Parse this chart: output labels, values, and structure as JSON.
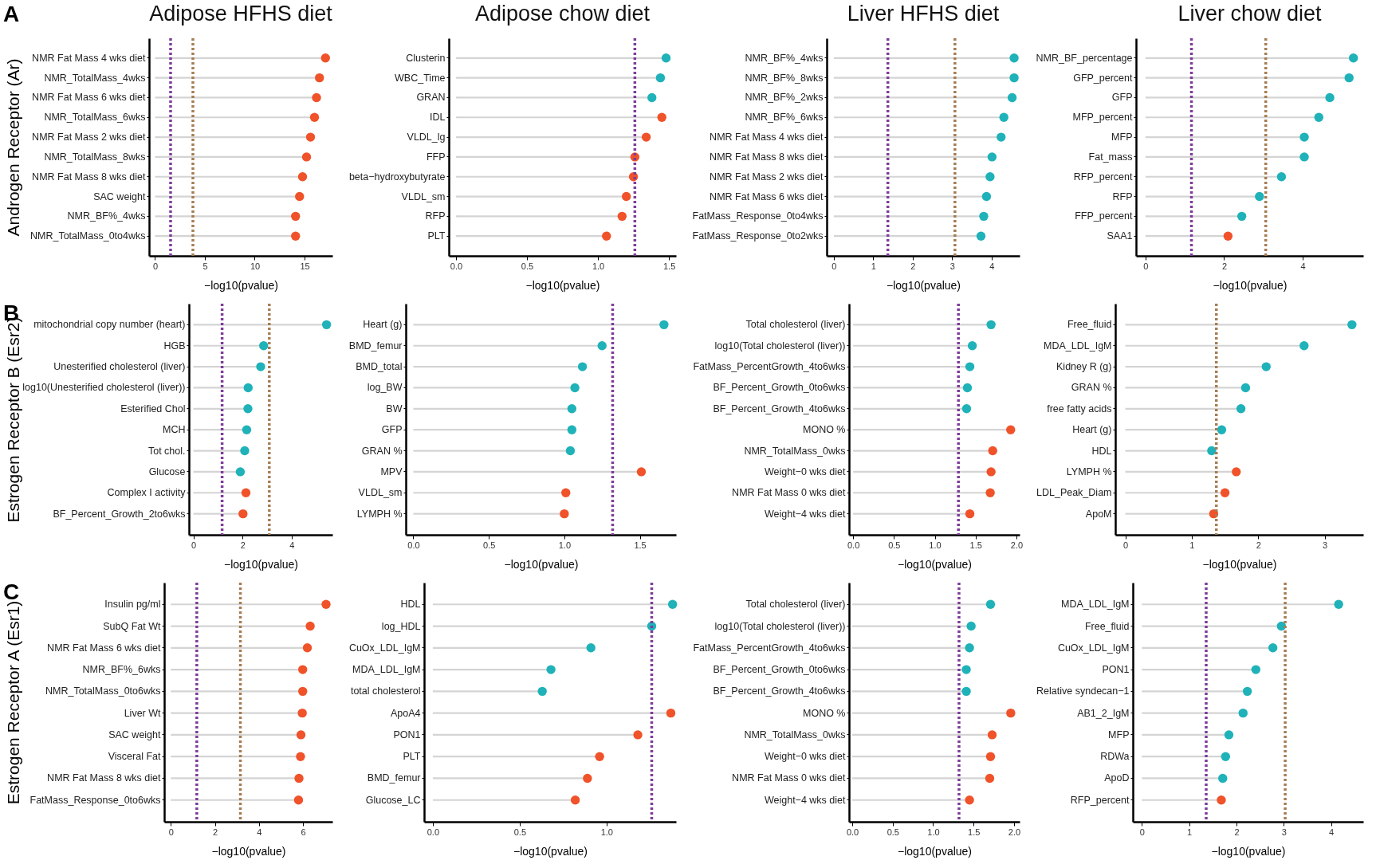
{
  "chart_data": [
    {
      "type": "lollipop",
      "orientation": "horizontal",
      "marker": "circle",
      "title": "Adipose HFHS diet",
      "ylabel": "Androgen Receptor (Ar)",
      "xlabel": "−log10(pvalue)",
      "annotations": [
        "A"
      ],
      "categories": [
        "NMR Fat Mass 4 wks diet",
        "NMR_TotalMass_4wks",
        "NMR Fat Mass 6 wks diet",
        "NMR_TotalMass_6wks",
        "NMR Fat Mass 2 wks diet",
        "NMR_TotalMass_8wks",
        "NMR Fat Mass 8 wks diet",
        "SAC weight",
        "NMR_BF%_4wks",
        "NMR_TotalMass_0to4wks"
      ],
      "values": [
        17.1,
        16.5,
        16.2,
        16.0,
        15.6,
        15.2,
        14.8,
        14.5,
        14.1,
        14.1
      ],
      "colors": [
        "#f0522a",
        "#f0522a",
        "#f0522a",
        "#f0522a",
        "#f0522a",
        "#f0522a",
        "#f0522a",
        "#f0522a",
        "#f0522a",
        "#f0522a"
      ],
      "xlim": [
        -0.6,
        17.8
      ],
      "xticks": [
        0,
        5,
        10,
        15
      ],
      "ref_lines": [
        {
          "axis": "x",
          "value": 1.56,
          "color": "#7d3c98",
          "line_style": "dotted"
        },
        {
          "axis": "x",
          "value": 3.8,
          "color": "#a67c52",
          "line_style": "dotted"
        }
      ]
    },
    {
      "type": "lollipop",
      "orientation": "horizontal",
      "marker": "circle",
      "title": "Adipose chow diet",
      "xlabel": "−log10(pvalue)",
      "categories": [
        "Clusterin",
        "WBC_Time",
        "GRAN",
        "IDL",
        "VLDL_lg",
        "FFP",
        "beta−hydroxybutyrate",
        "VLDL_sm",
        "RFP",
        "PLT"
      ],
      "values": [
        1.48,
        1.44,
        1.38,
        1.45,
        1.34,
        1.26,
        1.25,
        1.2,
        1.17,
        1.06
      ],
      "colors": [
        "#1fb2b9",
        "#1fb2b9",
        "#1fb2b9",
        "#f0522a",
        "#f0522a",
        "#f0522a",
        "#f0522a",
        "#f0522a",
        "#f0522a",
        "#f0522a"
      ],
      "xlim": [
        -0.05,
        1.55
      ],
      "xticks": [
        {
          "value": 0,
          "label": "0.0"
        },
        0.5,
        {
          "value": 1,
          "label": "1.0"
        },
        1.5
      ],
      "ref_lines": [
        {
          "axis": "x",
          "value": 1.26,
          "color": "#7d3c98",
          "line_style": "dotted"
        }
      ]
    },
    {
      "type": "lollipop",
      "orientation": "horizontal",
      "marker": "circle",
      "title": "Liver HFHS diet",
      "xlabel": "−log10(pvalue)",
      "categories": [
        "NMR_BF%_4wks",
        "NMR_BF%_8wks",
        "NMR_BF%_2wks",
        "NMR_BF%_6wks",
        "NMR Fat Mass 4 wks diet",
        "NMR Fat Mass 8 wks diet",
        "NMR Fat Mass 2 wks diet",
        "NMR Fat Mass 6 wks diet",
        "FatMass_Response_0to4wks",
        "FatMass_Response_0to2wks"
      ],
      "values": [
        4.57,
        4.57,
        4.52,
        4.31,
        4.24,
        4.01,
        3.96,
        3.87,
        3.8,
        3.73
      ],
      "colors": [
        "#1fb2b9",
        "#1fb2b9",
        "#1fb2b9",
        "#1fb2b9",
        "#1fb2b9",
        "#1fb2b9",
        "#1fb2b9",
        "#1fb2b9",
        "#1fb2b9",
        "#1fb2b9"
      ],
      "xlim": [
        -0.18,
        4.71
      ],
      "xticks": [
        0,
        1,
        2,
        3,
        4
      ],
      "ref_lines": [
        {
          "axis": "x",
          "value": 1.37,
          "color": "#7d3c98",
          "line_style": "dotted"
        },
        {
          "axis": "x",
          "value": 3.07,
          "color": "#a67c52",
          "line_style": "dotted"
        }
      ]
    },
    {
      "type": "lollipop",
      "orientation": "horizontal",
      "marker": "circle",
      "title": "Liver chow diet",
      "xlabel": "−log10(pvalue)",
      "categories": [
        "NMR_BF_percentage",
        "GFP_percent",
        "GFP",
        "MFP_percent",
        "MFP",
        "Fat_mass",
        "RFP_percent",
        "RFP",
        "FFP_percent",
        "SAA1"
      ],
      "values": [
        5.29,
        5.18,
        4.69,
        4.41,
        4.04,
        4.04,
        3.46,
        2.9,
        2.45,
        2.1
      ],
      "colors": [
        "#1fb2b9",
        "#1fb2b9",
        "#1fb2b9",
        "#1fb2b9",
        "#1fb2b9",
        "#1fb2b9",
        "#1fb2b9",
        "#1fb2b9",
        "#1fb2b9",
        "#f0522a"
      ],
      "xlim": [
        -0.24,
        5.54
      ],
      "xticks": [
        0,
        2,
        4
      ],
      "ref_lines": [
        {
          "axis": "x",
          "value": 1.17,
          "color": "#7d3c98",
          "line_style": "dotted"
        },
        {
          "axis": "x",
          "value": 3.06,
          "color": "#a67c52",
          "line_style": "dotted"
        }
      ]
    },
    {
      "type": "lollipop",
      "orientation": "horizontal",
      "marker": "circle",
      "ylabel": "Estrogen Receptor B (Esr2)",
      "xlabel": "−log10(pvalue)",
      "annotations": [
        "B"
      ],
      "categories": [
        "mitochondrial copy number (heart)",
        "HGB",
        "Unesterified cholesterol (liver)",
        "log10(Unesterified cholesterol (liver))",
        "Esterified Chol",
        "MCH",
        "Tot chol.",
        "Glucose",
        "Complex I activity",
        "BF_Percent_Growth_2to6wks"
      ],
      "values": [
        5.42,
        2.86,
        2.74,
        2.23,
        2.22,
        2.17,
        2.09,
        1.91,
        2.14,
        2.02
      ],
      "colors": [
        "#1fb2b9",
        "#1fb2b9",
        "#1fb2b9",
        "#1fb2b9",
        "#1fb2b9",
        "#1fb2b9",
        "#1fb2b9",
        "#1fb2b9",
        "#f0522a",
        "#f0522a"
      ],
      "xlim": [
        -0.18,
        5.66
      ],
      "xticks": [
        0,
        2,
        4
      ],
      "ref_lines": [
        {
          "axis": "x",
          "value": 1.17,
          "color": "#7d3c98",
          "line_style": "dotted"
        },
        {
          "axis": "x",
          "value": 3.09,
          "color": "#a67c52",
          "line_style": "dotted"
        }
      ]
    },
    {
      "type": "lollipop",
      "orientation": "horizontal",
      "marker": "circle",
      "xlabel": "−log10(pvalue)",
      "categories": [
        "Heart (g)",
        "BMD_femur",
        "BMD_total",
        "log_BW",
        "BW",
        "GFP",
        "GRAN %",
        "MPV",
        "VLDL_sm",
        "LYMPH %"
      ],
      "values": [
        1.66,
        1.25,
        1.12,
        1.07,
        1.05,
        1.05,
        1.04,
        1.51,
        1.01,
        1.0
      ],
      "colors": [
        "#1fb2b9",
        "#1fb2b9",
        "#1fb2b9",
        "#1fb2b9",
        "#1fb2b9",
        "#1fb2b9",
        "#1fb2b9",
        "#f0522a",
        "#f0522a",
        "#f0522a"
      ],
      "xlim": [
        -0.05,
        1.74
      ],
      "xticks": [
        {
          "value": 0,
          "label": "0.0"
        },
        0.5,
        {
          "value": 1,
          "label": "1.0"
        },
        1.5
      ],
      "ref_lines": [
        {
          "axis": "x",
          "value": 1.32,
          "color": "#7d3c98",
          "line_style": "dotted"
        }
      ]
    },
    {
      "type": "lollipop",
      "orientation": "horizontal",
      "marker": "circle",
      "xlabel": "−log10(pvalue)",
      "categories": [
        "Total cholesterol (liver)",
        "log10(Total cholesterol (liver))",
        "FatMass_PercentGrowth_4to6wks",
        "BF_Percent_Growth_0to6wks",
        "BF_Percent_Growth_4to6wks",
        "MONO %",
        "NMR_TotalMass_0wks",
        "Weight−0 wks diet",
        "NMR Fat Mass 0 wks diet",
        "Weight−4 wks diet"
      ],
      "values": [
        1.69,
        1.46,
        1.43,
        1.4,
        1.39,
        1.93,
        1.71,
        1.69,
        1.68,
        1.43
      ],
      "colors": [
        "#1fb2b9",
        "#1fb2b9",
        "#1fb2b9",
        "#1fb2b9",
        "#1fb2b9",
        "#f0522a",
        "#f0522a",
        "#f0522a",
        "#f0522a",
        "#f0522a"
      ],
      "xlim": [
        -0.05,
        2.04
      ],
      "xticks": [
        {
          "value": 0,
          "label": "0.0"
        },
        0.5,
        {
          "value": 1,
          "label": "1.0"
        },
        1.5,
        {
          "value": 2,
          "label": "2.0"
        }
      ],
      "ref_lines": [
        {
          "axis": "x",
          "value": 1.29,
          "color": "#7d3c98",
          "line_style": "dotted"
        }
      ]
    },
    {
      "type": "lollipop",
      "orientation": "horizontal",
      "marker": "circle",
      "xlabel": "−log10(pvalue)",
      "categories": [
        "Free_fluid",
        "MDA_LDL_IgM",
        "Kidney R (g)",
        "GRAN %",
        "free fatty acids",
        "Heart (g)",
        "HDL",
        "LYMPH %",
        "LDL_Peak_Diam",
        "ApoM"
      ],
      "values": [
        3.41,
        2.69,
        2.12,
        1.81,
        1.74,
        1.45,
        1.3,
        1.67,
        1.5,
        1.33
      ],
      "colors": [
        "#1fb2b9",
        "#1fb2b9",
        "#1fb2b9",
        "#1fb2b9",
        "#1fb2b9",
        "#1fb2b9",
        "#1fb2b9",
        "#f0522a",
        "#f0522a",
        "#f0522a"
      ],
      "xlim": [
        -0.15,
        3.58
      ],
      "xticks": [
        0,
        1,
        2,
        3
      ],
      "ref_lines": [
        {
          "axis": "x",
          "value": 1.37,
          "color": "#a67c52",
          "line_style": "dotted"
        }
      ]
    },
    {
      "type": "lollipop",
      "orientation": "horizontal",
      "marker": "circle",
      "ylabel": "Estrogen Receptor A (Esr1)",
      "xlabel": "−log10(pvalue)",
      "annotations": [
        "C"
      ],
      "categories": [
        "Insulin pg/ml",
        "SubQ Fat Wt",
        "NMR Fat Mass 6 wks diet",
        "NMR_BF%_6wks",
        "NMR_TotalMass_0to6wks",
        "Liver Wt",
        "SAC weight",
        "Visceral Fat",
        "NMR Fat Mass 8 wks diet",
        "FatMass_Response_0to6wks"
      ],
      "values": [
        7.05,
        6.33,
        6.2,
        5.99,
        5.99,
        5.97,
        5.91,
        5.89,
        5.82,
        5.8
      ],
      "colors": [
        "#f0522a",
        "#f0522a",
        "#f0522a",
        "#f0522a",
        "#f0522a",
        "#f0522a",
        "#f0522a",
        "#f0522a",
        "#f0522a",
        "#f0522a"
      ],
      "xlim": [
        -0.3,
        7.34
      ],
      "xticks": [
        0,
        2,
        4,
        6
      ],
      "ref_lines": [
        {
          "axis": "x",
          "value": 1.18,
          "color": "#7d3c98",
          "line_style": "dotted"
        },
        {
          "axis": "x",
          "value": 3.16,
          "color": "#a67c52",
          "line_style": "dotted"
        }
      ]
    },
    {
      "type": "lollipop",
      "orientation": "horizontal",
      "marker": "circle",
      "xlabel": "−log10(pvalue)",
      "categories": [
        "HDL",
        "log_HDL",
        "CuOx_LDL_IgM",
        "MDA_LDL_IgM",
        "total cholesterol",
        "ApoA4",
        "PON1",
        "PLT",
        "BMD_femur",
        "Glucose_LC"
      ],
      "values": [
        1.38,
        1.26,
        0.91,
        0.68,
        0.63,
        1.37,
        1.18,
        0.96,
        0.89,
        0.82
      ],
      "colors": [
        "#1fb2b9",
        "#1fb2b9",
        "#1fb2b9",
        "#1fb2b9",
        "#1fb2b9",
        "#f0522a",
        "#f0522a",
        "#f0522a",
        "#f0522a",
        "#f0522a"
      ],
      "xlim": [
        -0.05,
        1.4
      ],
      "xticks": [
        {
          "value": 0,
          "label": "0.0"
        },
        0.5,
        {
          "value": 1,
          "label": "1.0"
        }
      ],
      "ref_lines": [
        {
          "axis": "x",
          "value": 1.26,
          "color": "#7d3c98",
          "line_style": "dotted"
        }
      ]
    },
    {
      "type": "lollipop",
      "orientation": "horizontal",
      "marker": "circle",
      "xlabel": "−log10(pvalue)",
      "categories": [
        "Total cholesterol (liver)",
        "log10(Total cholesterol (liver))",
        "FatMass_PercentGrowth_4to6wks",
        "BF_Percent_Growth_0to6wks",
        "BF_Percent_Growth_4to6wks",
        "MONO %",
        "NMR_TotalMass_0wks",
        "Weight−0 wks diet",
        "NMR Fat Mass 0 wks diet",
        "Weight−4 wks diet"
      ],
      "values": [
        1.71,
        1.47,
        1.45,
        1.41,
        1.41,
        1.96,
        1.73,
        1.71,
        1.7,
        1.45
      ],
      "colors": [
        "#1fb2b9",
        "#1fb2b9",
        "#1fb2b9",
        "#1fb2b9",
        "#1fb2b9",
        "#f0522a",
        "#f0522a",
        "#f0522a",
        "#f0522a",
        "#f0522a"
      ],
      "xlim": [
        -0.04,
        2.07
      ],
      "xticks": [
        {
          "value": 0,
          "label": "0.0"
        },
        0.5,
        {
          "value": 1,
          "label": "1.0"
        },
        1.5,
        {
          "value": 2,
          "label": "2.0"
        }
      ],
      "ref_lines": [
        {
          "axis": "x",
          "value": 1.32,
          "color": "#7d3c98",
          "line_style": "dotted"
        }
      ]
    },
    {
      "type": "lollipop",
      "orientation": "horizontal",
      "marker": "circle",
      "xlabel": "−log10(pvalue)",
      "categories": [
        "MDA_LDL_IgM",
        "Free_fluid",
        "CuOx_LDL_IgM",
        "PON1",
        "Relative syndecan−1",
        "AB1_2_IgM",
        "MFP",
        "RDWa",
        "ApoD",
        "RFP_percent"
      ],
      "values": [
        4.16,
        2.95,
        2.77,
        2.41,
        2.23,
        2.14,
        1.84,
        1.77,
        1.71,
        1.68
      ],
      "colors": [
        "#1fb2b9",
        "#1fb2b9",
        "#1fb2b9",
        "#1fb2b9",
        "#1fb2b9",
        "#1fb2b9",
        "#1fb2b9",
        "#1fb2b9",
        "#1fb2b9",
        "#f0522a"
      ],
      "xlim": [
        -0.19,
        4.68
      ],
      "xticks": [
        0,
        1,
        2,
        3,
        4
      ],
      "ref_lines": [
        {
          "axis": "x",
          "value": 1.36,
          "color": "#7d3c98",
          "line_style": "dotted"
        },
        {
          "axis": "x",
          "value": 3.03,
          "color": "#a67c52",
          "line_style": "dotted"
        }
      ]
    }
  ]
}
